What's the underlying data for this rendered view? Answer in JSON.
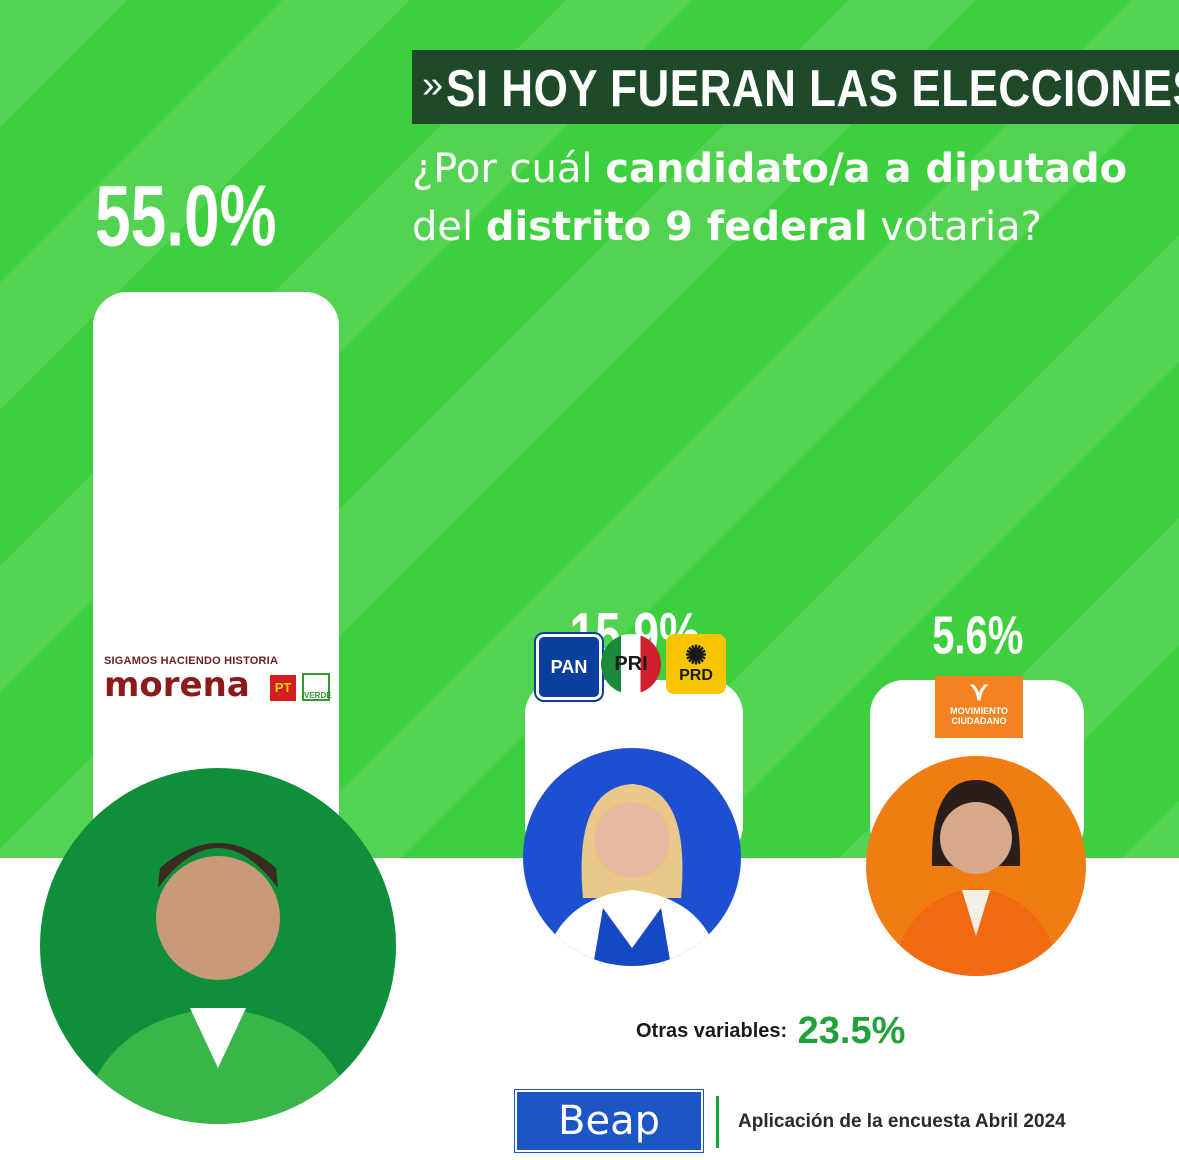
{
  "header": {
    "title": "SI HOY FUERAN LAS ELECCIONES",
    "chevron": "»",
    "question_parts": [
      {
        "text": "¿Por cuál ",
        "bold": false
      },
      {
        "text": "candidato/a a diputado",
        "bold": true
      },
      {
        "text": " del ",
        "bold": false
      },
      {
        "text": "distrito 9 federal",
        "bold": true
      },
      {
        "text": " votaria?",
        "bold": false
      }
    ]
  },
  "chart_data": {
    "type": "bar",
    "categories": [
      "Sigamos Haciendo Historia (Morena, PT, Verde)",
      "PAN, PRI, PRD",
      "Movimiento Ciudadano"
    ],
    "values": [
      55.0,
      15.9,
      5.6
    ],
    "value_labels": [
      "55.0%",
      "15.9%",
      "5.6%"
    ],
    "unit": "%",
    "title": "SI HOY FUERAN LAS ELECCIONES",
    "xlabel": "",
    "ylabel": "",
    "grid": false,
    "legend": "none"
  },
  "logos": {
    "morena_top": "SIGAMOS HACIENDO HISTORIA",
    "morena_name": "morena",
    "pt": "PT",
    "verde": "VERDE",
    "pan": "PAN",
    "pri": "PRI",
    "prd": "PRD",
    "mc_line1": "MOVIMIENTO",
    "mc_line2": "CIUDADANO"
  },
  "others": {
    "label": "Otras variables:",
    "value": "23.5%"
  },
  "footer": {
    "brand": "Beap",
    "text": "Aplicación de la encuesta Abril 2024"
  },
  "colors": {
    "background_green": "#3ecf3e",
    "banner": "#1f4a2a",
    "morena": "#8b1a1a",
    "pan": "#0a3f9e",
    "mc": "#f58220",
    "others_value": "#1fa23a",
    "beap": "#1c56c6"
  }
}
